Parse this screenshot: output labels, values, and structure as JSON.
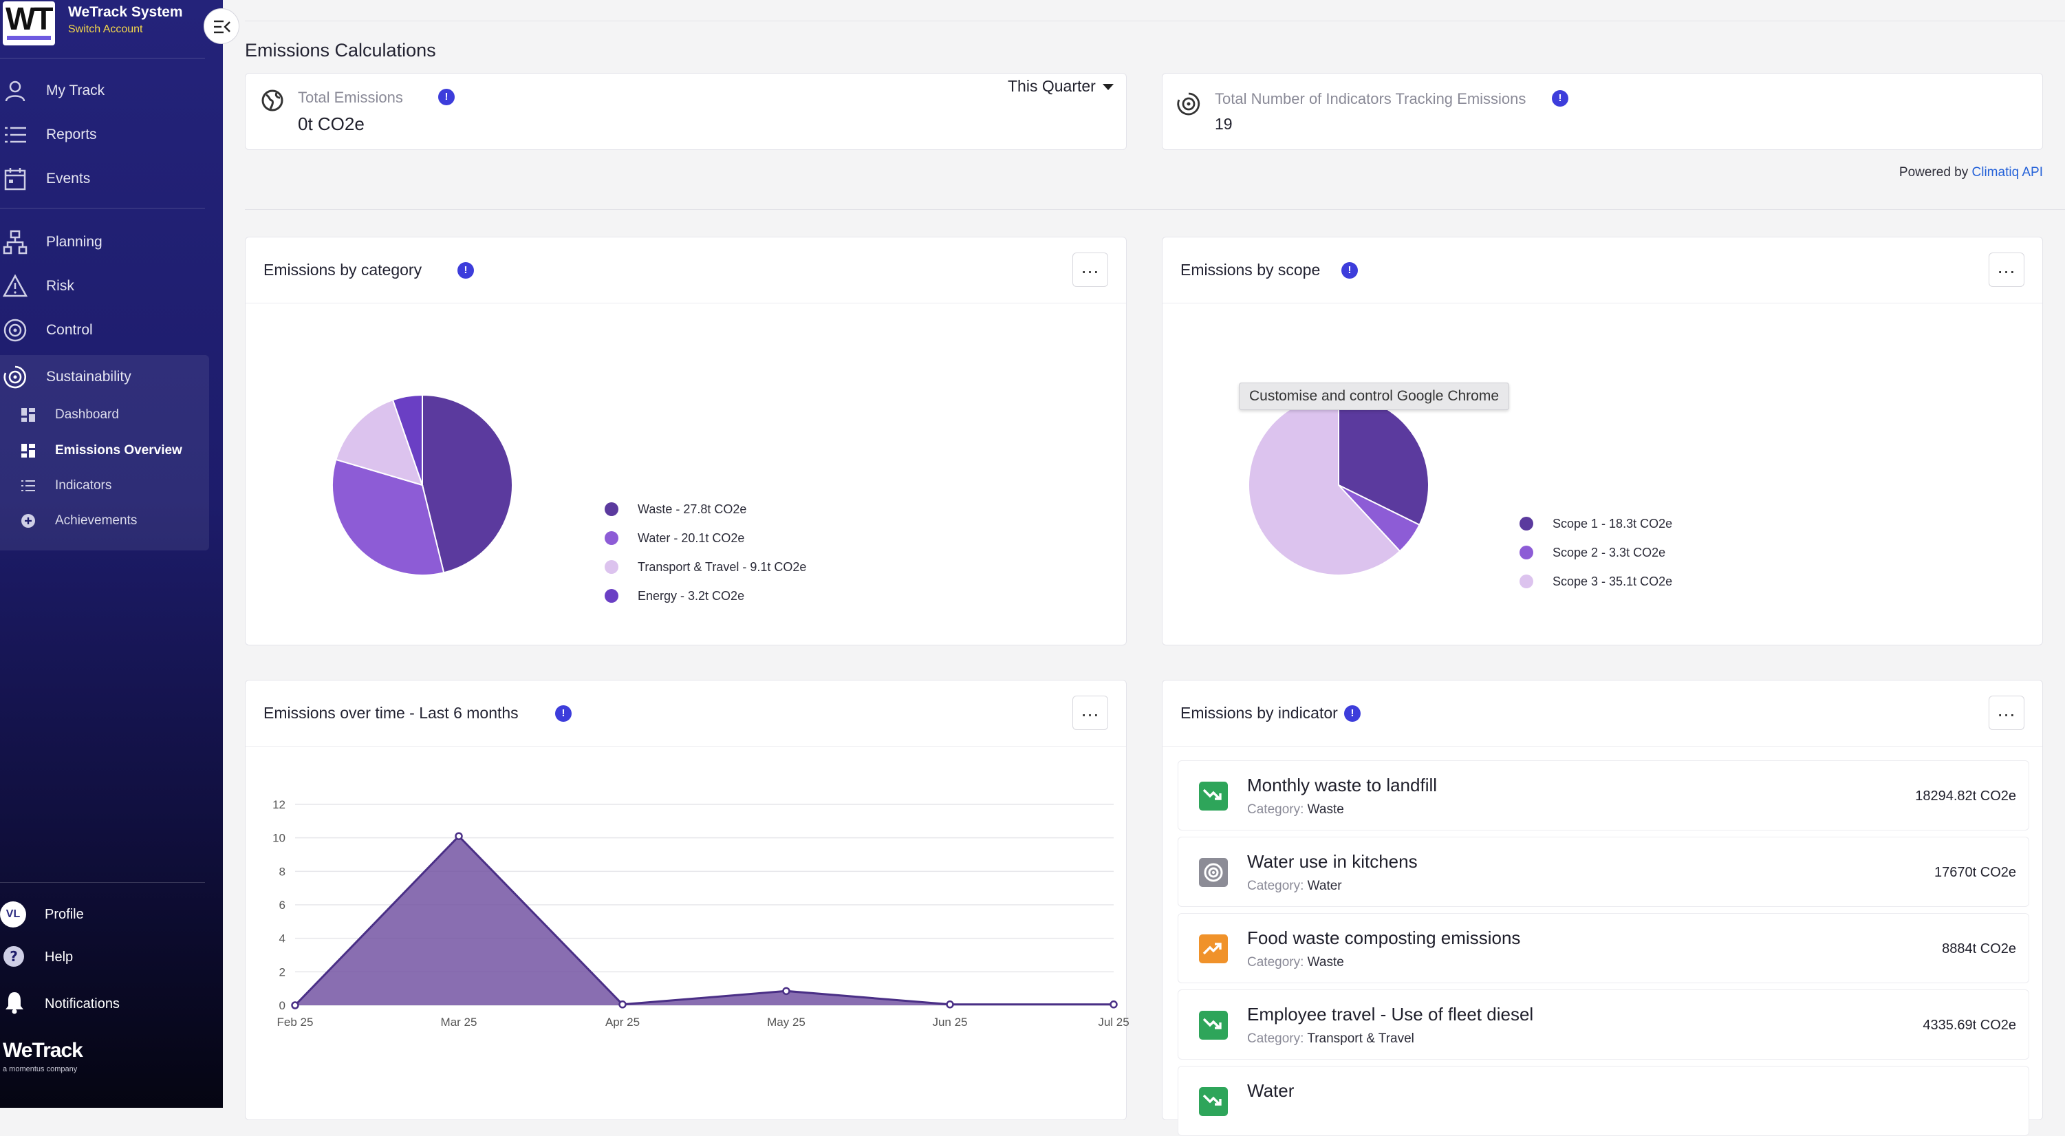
{
  "app": {
    "brand_initials": "WT",
    "name": "WeTrack System",
    "switch_account": "Switch Account",
    "footer_logo": "WeTrack",
    "footer_sub": "a momentus company"
  },
  "sidebar": {
    "items": [
      {
        "label": "My Track",
        "icon": "person-icon"
      },
      {
        "label": "Reports",
        "icon": "list-icon"
      },
      {
        "label": "Events",
        "icon": "calendar-icon"
      },
      {
        "label": "Planning",
        "icon": "hierarchy-icon"
      },
      {
        "label": "Risk",
        "icon": "warning-icon"
      },
      {
        "label": "Control",
        "icon": "target-icon"
      },
      {
        "label": "Sustainability",
        "icon": "sustainability-icon"
      }
    ],
    "sub_items": [
      {
        "label": "Dashboard",
        "icon": "grid-icon"
      },
      {
        "label": "Emissions Overview",
        "icon": "grid-icon",
        "active": true
      },
      {
        "label": "Indicators",
        "icon": "list-icon"
      },
      {
        "label": "Achievements",
        "icon": "plus-circle-icon"
      }
    ],
    "profile_initials": "VL",
    "profile": "Profile",
    "help": "Help",
    "notifications": "Notifications"
  },
  "page": {
    "title": "Emissions Calculations",
    "total_emissions_label": "Total Emissions",
    "total_emissions_value": "0t CO2e",
    "period": "This Quarter",
    "indicators_label": "Total Number of Indicators Tracking Emissions",
    "indicators_value": "19",
    "powered_by": "Powered by",
    "powered_link": "Climatiq API",
    "info_glyph": "!",
    "more_glyph": "…",
    "tooltip": "Customise and control Google Chrome"
  },
  "charts": {
    "category_title": "Emissions by category",
    "scope_title": "Emissions by scope",
    "time_title": "Emissions over time - Last 6 months",
    "indicator_title": "Emissions by indicator"
  },
  "chart_data": [
    {
      "type": "pie",
      "title": "Emissions by category",
      "labels": [
        "Waste - 27.8t CO2e",
        "Water - 20.1t CO2e",
        "Transport & Travel - 9.1t CO2e",
        "Energy - 3.2t CO2e"
      ],
      "values": [
        27.8,
        20.1,
        9.1,
        3.2
      ],
      "colors": [
        "#5b3a9e",
        "#8d5cd6",
        "#dcc3ee",
        "#6a3fc4"
      ],
      "legend": "right"
    },
    {
      "type": "pie",
      "title": "Emissions by scope",
      "labels": [
        "Scope 1 - 18.3t CO2e",
        "Scope 2 - 3.3t CO2e",
        "Scope 3 - 35.1t CO2e"
      ],
      "values": [
        18.3,
        3.3,
        35.1
      ],
      "colors": [
        "#5b3a9e",
        "#8d5cd6",
        "#dcc3ee"
      ],
      "legend": "right"
    },
    {
      "type": "area",
      "title": "Emissions over time - Last 6 months",
      "categories": [
        "Feb 25",
        "Mar 25",
        "Apr 25",
        "May 25",
        "Jun 25",
        "Jul 25"
      ],
      "values": [
        0,
        10.1,
        0.05,
        0.85,
        0.05,
        0.05
      ],
      "yticks": [
        0,
        2,
        4,
        6,
        8,
        10,
        12
      ],
      "ylim": [
        0,
        12
      ],
      "color": "#6f4ea0",
      "grid": true
    }
  ],
  "indicators": [
    {
      "name": "Monthly waste to landfill",
      "category_label": "Category:",
      "category": "Waste",
      "value": "18294.82t CO2e",
      "icon": "trend-down-icon",
      "color": "#2ea55a"
    },
    {
      "name": "Water use in kitchens",
      "category_label": "Category:",
      "category": "Water",
      "value": "17670t CO2e",
      "icon": "target-icon",
      "color": "#8c8c96"
    },
    {
      "name": "Food waste composting emissions",
      "category_label": "Category:",
      "category": "Waste",
      "value": "8884t CO2e",
      "icon": "trend-up-icon",
      "color": "#f0922a"
    },
    {
      "name": "Employee travel - Use of fleet diesel",
      "category_label": "Category:",
      "category": "Transport & Travel",
      "value": "4335.69t CO2e",
      "icon": "trend-down-icon",
      "color": "#2ea55a"
    },
    {
      "name": "Water",
      "category_label": "",
      "category": "",
      "value": "",
      "icon": "trend-down-icon",
      "color": "#2ea55a"
    }
  ]
}
